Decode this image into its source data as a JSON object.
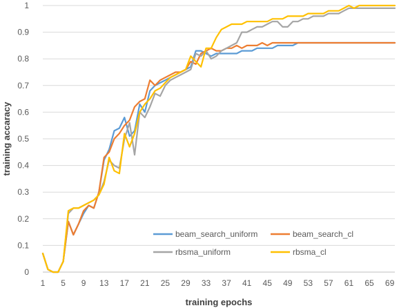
{
  "chart_data": {
    "type": "line",
    "title": "",
    "xlabel": "training epochs",
    "ylabel": "training accaracy",
    "xlim": [
      1,
      70
    ],
    "ylim": [
      0,
      1
    ],
    "x_ticks": [
      1,
      5,
      9,
      13,
      17,
      21,
      25,
      29,
      33,
      37,
      41,
      45,
      49,
      53,
      57,
      61,
      65,
      69
    ],
    "y_ticks": [
      0,
      0.1,
      0.2,
      0.3,
      0.4,
      0.5,
      0.6,
      0.7,
      0.8,
      0.9,
      1
    ],
    "grid": "horizontal",
    "legend": "bottom-right, inside",
    "x": [
      1,
      2,
      3,
      4,
      5,
      6,
      7,
      8,
      9,
      10,
      11,
      12,
      13,
      14,
      15,
      16,
      17,
      18,
      19,
      20,
      21,
      22,
      23,
      24,
      25,
      26,
      27,
      28,
      29,
      30,
      31,
      32,
      33,
      34,
      35,
      36,
      37,
      38,
      39,
      40,
      41,
      42,
      43,
      44,
      45,
      46,
      47,
      48,
      49,
      50,
      51,
      52,
      53,
      54,
      55,
      56,
      57,
      58,
      59,
      60,
      61,
      62,
      63,
      64,
      65,
      66,
      67,
      68,
      69,
      70
    ],
    "series": [
      {
        "name": "beam_search_uniform",
        "color": "#5B9BD5",
        "values": [
          0.07,
          0.01,
          0.0,
          0.0,
          0.04,
          0.19,
          0.14,
          0.18,
          0.22,
          0.25,
          0.24,
          0.3,
          0.42,
          0.46,
          0.53,
          0.54,
          0.58,
          0.51,
          0.53,
          0.63,
          0.6,
          0.68,
          0.7,
          0.71,
          0.72,
          0.73,
          0.74,
          0.75,
          0.76,
          0.77,
          0.83,
          0.83,
          0.82,
          0.81,
          0.82,
          0.82,
          0.82,
          0.82,
          0.82,
          0.83,
          0.83,
          0.83,
          0.84,
          0.84,
          0.84,
          0.84,
          0.85,
          0.85,
          0.85,
          0.85,
          0.86,
          0.86,
          0.86,
          0.86,
          0.86,
          0.86,
          0.86,
          0.86,
          0.86,
          0.86,
          0.86,
          0.86,
          0.86,
          0.86,
          0.86,
          0.86,
          0.86,
          0.86,
          0.86,
          0.86
        ]
      },
      {
        "name": "beam_search_cl",
        "color": "#ED7D31",
        "values": [
          0.07,
          0.01,
          0.0,
          0.0,
          0.04,
          0.19,
          0.14,
          0.18,
          0.23,
          0.25,
          0.24,
          0.3,
          0.43,
          0.45,
          0.5,
          0.52,
          0.55,
          0.57,
          0.62,
          0.64,
          0.65,
          0.72,
          0.7,
          0.72,
          0.73,
          0.74,
          0.75,
          0.75,
          0.76,
          0.79,
          0.78,
          0.82,
          0.83,
          0.84,
          0.83,
          0.83,
          0.84,
          0.84,
          0.85,
          0.84,
          0.85,
          0.85,
          0.85,
          0.86,
          0.85,
          0.86,
          0.86,
          0.86,
          0.86,
          0.86,
          0.86,
          0.86,
          0.86,
          0.86,
          0.86,
          0.86,
          0.86,
          0.86,
          0.86,
          0.86,
          0.86,
          0.86,
          0.86,
          0.86,
          0.86,
          0.86,
          0.86,
          0.86,
          0.86,
          0.86
        ]
      },
      {
        "name": "rbsma_uniform",
        "color": "#A5A5A5",
        "values": [
          0.07,
          0.01,
          0.0,
          0.0,
          0.04,
          0.22,
          0.24,
          0.24,
          0.25,
          0.26,
          0.27,
          0.29,
          0.34,
          0.42,
          0.4,
          0.39,
          0.5,
          0.56,
          0.44,
          0.6,
          0.58,
          0.62,
          0.67,
          0.66,
          0.7,
          0.72,
          0.73,
          0.74,
          0.75,
          0.76,
          0.82,
          0.81,
          0.83,
          0.8,
          0.81,
          0.83,
          0.84,
          0.85,
          0.86,
          0.9,
          0.9,
          0.91,
          0.92,
          0.92,
          0.93,
          0.94,
          0.94,
          0.92,
          0.92,
          0.94,
          0.94,
          0.95,
          0.95,
          0.96,
          0.96,
          0.96,
          0.97,
          0.97,
          0.97,
          0.98,
          0.99,
          0.99,
          0.99,
          0.99,
          0.99,
          0.99,
          0.99,
          0.99,
          0.99,
          0.99
        ]
      },
      {
        "name": "rbsma_cl",
        "color": "#FFC000",
        "values": [
          0.07,
          0.01,
          0.0,
          0.0,
          0.04,
          0.23,
          0.24,
          0.24,
          0.25,
          0.26,
          0.27,
          0.29,
          0.33,
          0.43,
          0.38,
          0.37,
          0.52,
          0.47,
          0.52,
          0.6,
          0.63,
          0.65,
          0.68,
          0.69,
          0.71,
          0.73,
          0.74,
          0.75,
          0.76,
          0.81,
          0.79,
          0.77,
          0.84,
          0.84,
          0.88,
          0.91,
          0.92,
          0.93,
          0.93,
          0.93,
          0.94,
          0.94,
          0.94,
          0.94,
          0.94,
          0.95,
          0.95,
          0.95,
          0.96,
          0.96,
          0.96,
          0.96,
          0.97,
          0.97,
          0.97,
          0.97,
          0.98,
          0.98,
          0.98,
          0.99,
          1.0,
          0.99,
          1.0,
          1.0,
          1.0,
          1.0,
          1.0,
          1.0,
          1.0,
          1.0
        ]
      }
    ]
  }
}
